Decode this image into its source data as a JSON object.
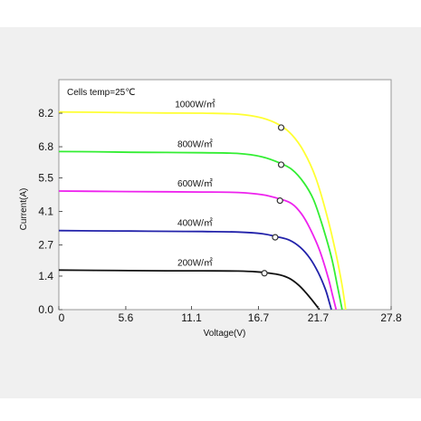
{
  "chart_data": {
    "type": "line",
    "annotation": "Cells temp=25℃",
    "xlabel": "Voltage(V)",
    "ylabel": "Current(A)",
    "xlim": [
      0,
      27.8
    ],
    "ylim": [
      0,
      9.6
    ],
    "xticks": [
      "0",
      "5.6",
      "11.1",
      "16.7",
      "21.7",
      "27.8"
    ],
    "xtick_values": [
      0,
      5.6,
      11.1,
      16.7,
      21.7,
      27.8
    ],
    "yticks": [
      "0.0",
      "1.4",
      "2.7",
      "4.1",
      "5.5",
      "6.8",
      "8.2"
    ],
    "ytick_values": [
      0.0,
      1.4,
      2.7,
      4.1,
      5.5,
      6.8,
      8.2
    ],
    "grid": false,
    "legend": "inline labels",
    "series": [
      {
        "name": "1000W/㎡",
        "color": "#ffff33",
        "x": [
          0,
          3,
          6,
          9,
          12,
          15,
          17,
          18.5,
          19.5,
          20.5,
          21.5,
          22.5,
          23.2,
          23.7,
          24.0
        ],
        "y": [
          8.25,
          8.24,
          8.22,
          8.21,
          8.2,
          8.16,
          8.0,
          7.7,
          7.3,
          6.6,
          5.5,
          3.8,
          2.3,
          1.0,
          0.0
        ],
        "mpp": [
          18.6,
          7.6
        ]
      },
      {
        "name": "800W/㎡",
        "color": "#33ee33",
        "x": [
          0,
          3,
          6,
          9,
          12,
          15,
          17,
          18.5,
          19.5,
          20.5,
          21.3,
          22.0,
          22.8,
          23.3,
          23.7
        ],
        "y": [
          6.6,
          6.59,
          6.57,
          6.56,
          6.55,
          6.52,
          6.38,
          6.12,
          5.85,
          5.3,
          4.6,
          3.6,
          2.2,
          1.0,
          0.0
        ],
        "mpp": [
          18.6,
          6.05
        ]
      },
      {
        "name": "600W/㎡",
        "color": "#ee22ee",
        "x": [
          0,
          3,
          6,
          9,
          12,
          15,
          17,
          18.5,
          19.5,
          20.3,
          21.0,
          21.8,
          22.5,
          22.9,
          23.2
        ],
        "y": [
          4.95,
          4.94,
          4.93,
          4.92,
          4.91,
          4.89,
          4.8,
          4.62,
          4.42,
          4.0,
          3.4,
          2.5,
          1.4,
          0.6,
          0.0
        ],
        "mpp": [
          18.5,
          4.55
        ]
      },
      {
        "name": "400W/㎡",
        "color": "#2222aa",
        "x": [
          0,
          3,
          6,
          9,
          12,
          15,
          17,
          18.3,
          19.3,
          20.2,
          21.0,
          21.7,
          22.3,
          22.6,
          22.8
        ],
        "y": [
          3.3,
          3.29,
          3.28,
          3.27,
          3.26,
          3.24,
          3.17,
          3.04,
          2.9,
          2.6,
          2.15,
          1.55,
          0.85,
          0.35,
          0.0
        ],
        "mpp": [
          18.1,
          3.02
        ]
      },
      {
        "name": "200W/㎡",
        "color": "#111111",
        "x": [
          0,
          3,
          6,
          9,
          12,
          15,
          16.5,
          17.5,
          18.5,
          19.3,
          20.0,
          20.6,
          21.1,
          21.5,
          21.8
        ],
        "y": [
          1.65,
          1.64,
          1.63,
          1.62,
          1.62,
          1.61,
          1.58,
          1.53,
          1.45,
          1.3,
          1.05,
          0.75,
          0.45,
          0.2,
          0.0
        ],
        "mpp": [
          17.2,
          1.52
        ]
      }
    ]
  }
}
